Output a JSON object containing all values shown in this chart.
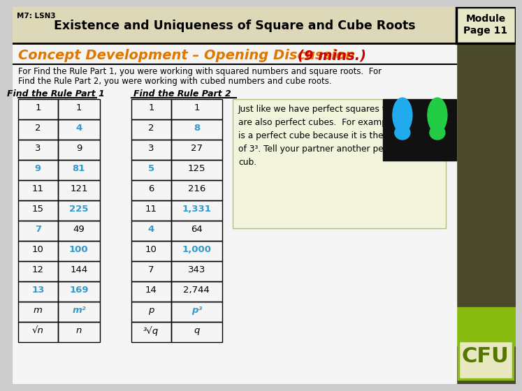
{
  "header_bg": "#ddd8b8",
  "header_label": "M7: LSN3",
  "header_title": "Existence and Uniqueness of Square and Cube Roots",
  "module_box_bg": "#e8e8c8",
  "module_text_line1": "Module",
  "module_text_line2": "Page 11",
  "right_bar_color": "#4a4a2a",
  "right_bar_green": "#88bb10",
  "concept_orange": "#dd7700",
  "concept_red": "#cc0000",
  "concept_text_orange": "Concept Development – Opening Discussion ",
  "concept_text_red": "(9 mins.)",
  "body_text1": "For Find the Rule Part 1, you were working with squared numbers and square roots.  For",
  "body_text2": "Find the Rule Part 2, you were working with cubed numbers and cube roots.",
  "table1_header": "Find the Rule Part 1",
  "table2_header": "Find the Rule Part 2",
  "table1_col1": [
    "1",
    "2",
    "3",
    "9",
    "11",
    "15",
    "7",
    "10",
    "12",
    "13",
    "m",
    "√n"
  ],
  "table1_col2": [
    "1",
    "4",
    "9",
    "81",
    "121",
    "225",
    "49",
    "100",
    "144",
    "169",
    "m²",
    "n"
  ],
  "table1_col2_colored": [
    false,
    true,
    false,
    true,
    false,
    true,
    false,
    true,
    false,
    true,
    true,
    false
  ],
  "table1_col1_colored": [
    false,
    false,
    false,
    true,
    false,
    false,
    true,
    false,
    false,
    true,
    false,
    false
  ],
  "table2_col1": [
    "1",
    "2",
    "3",
    "5",
    "6",
    "11",
    "4",
    "10",
    "7",
    "14",
    "p",
    "³√q"
  ],
  "table2_col2": [
    "1",
    "8",
    "27",
    "125",
    "216",
    "1,331",
    "64",
    "1,000",
    "343",
    "2,744",
    "p³",
    "q"
  ],
  "table2_col2_colored": [
    false,
    true,
    false,
    false,
    false,
    true,
    false,
    true,
    false,
    false,
    true,
    false
  ],
  "table2_col1_colored": [
    false,
    false,
    false,
    true,
    false,
    false,
    true,
    false,
    false,
    false,
    false,
    false
  ],
  "highlight_color": "#3399cc",
  "note_bg": "#f2f5dc",
  "note_text": "Just like we have perfect squares there\nare also perfect cubes.  For example, 27\nis a perfect cube because it is the product\nof 3³. Tell your partner another perfect\ncub.",
  "cfu_bg": "#e8e8c0",
  "cfu_border": "#88bb10",
  "cfu_text": "CFU",
  "cfu_color": "#557700",
  "page_bg": "#cccccc",
  "main_bg": "#f0f0f0"
}
